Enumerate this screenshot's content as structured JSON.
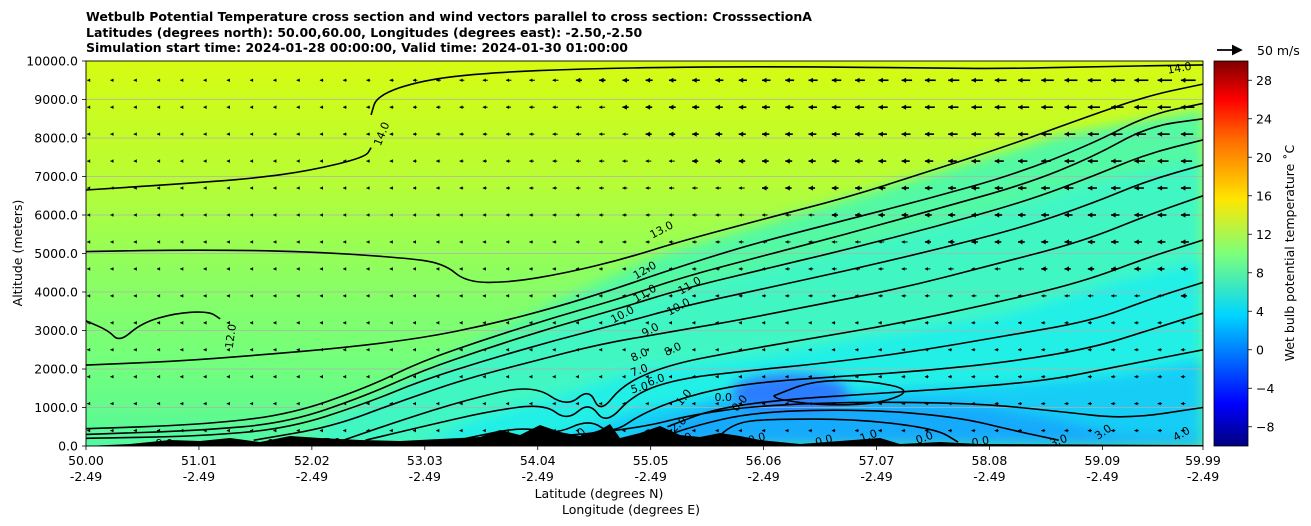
{
  "chart_data": {
    "type": "heatmap",
    "title_lines": [
      "Wetbulb Potential Temperature cross section and wind vectors parallel to cross section: CrosssectionA",
      "Latitudes (degrees north): 50.00,60.00, Longitudes (degrees east): -2.50,-2.50",
      "Simulation start time: 2024-01-28 00:00:00, Valid time: 2024-01-30 01:00:00"
    ],
    "xlabel_lat": "Latitude (degrees N)",
    "xlabel_lon": "Longitude (degrees E)",
    "ylabel": "Altitude (meters)",
    "colorbar_label": "Wet bulb potential temperature ˚C",
    "quiver_key_label": "50 m/s",
    "x_range": [
      50.0,
      59.99
    ],
    "y_range": [
      0,
      10000
    ],
    "grid": "horizontal",
    "x_ticks": [
      {
        "value": 50.0,
        "lat": "50.00",
        "lon": "-2.49"
      },
      {
        "value": 51.01,
        "lat": "51.01",
        "lon": "-2.49"
      },
      {
        "value": 52.02,
        "lat": "52.02",
        "lon": "-2.49"
      },
      {
        "value": 53.03,
        "lat": "53.03",
        "lon": "-2.49"
      },
      {
        "value": 54.04,
        "lat": "54.04",
        "lon": "-2.49"
      },
      {
        "value": 55.05,
        "lat": "55.05",
        "lon": "-2.49"
      },
      {
        "value": 56.06,
        "lat": "56.06",
        "lon": "-2.49"
      },
      {
        "value": 57.07,
        "lat": "57.07",
        "lon": "-2.49"
      },
      {
        "value": 58.08,
        "lat": "58.08",
        "lon": "-2.49"
      },
      {
        "value": 59.09,
        "lat": "59.09",
        "lon": "-2.49"
      },
      {
        "value": 59.99,
        "lat": "59.99",
        "lon": "-2.49"
      }
    ],
    "y_ticks": [
      {
        "value": 0,
        "label": "0.0"
      },
      {
        "value": 1000,
        "label": "1000.0"
      },
      {
        "value": 2000,
        "label": "2000.0"
      },
      {
        "value": 3000,
        "label": "3000.0"
      },
      {
        "value": 4000,
        "label": "4000.0"
      },
      {
        "value": 5000,
        "label": "5000.0"
      },
      {
        "value": 6000,
        "label": "6000.0"
      },
      {
        "value": 7000,
        "label": "7000.0"
      },
      {
        "value": 8000,
        "label": "8000.0"
      },
      {
        "value": 9000,
        "label": "9000.0"
      },
      {
        "value": 10000,
        "label": "10000.0"
      }
    ],
    "colorbar_range": [
      -10,
      30
    ],
    "colorbar_ticks": [
      {
        "value": -8,
        "label": "−8"
      },
      {
        "value": -4,
        "label": "−4"
      },
      {
        "value": 0,
        "label": "0"
      },
      {
        "value": 4,
        "label": "4"
      },
      {
        "value": 8,
        "label": "8"
      },
      {
        "value": 12,
        "label": "12"
      },
      {
        "value": 16,
        "label": "16"
      },
      {
        "value": 20,
        "label": "20"
      },
      {
        "value": 24,
        "label": "24"
      },
      {
        "value": 28,
        "label": "28"
      }
    ],
    "contour_lines": [
      {
        "level": "14.0",
        "points": [
          [
            50.0,
            6650
          ],
          [
            50.8,
            6800
          ],
          [
            51.5,
            6950
          ],
          [
            52.0,
            7150
          ],
          [
            52.5,
            7500
          ],
          [
            52.55,
            7750
          ]
        ]
      },
      {
        "level": "14.0",
        "points": [
          [
            52.55,
            8600
          ],
          [
            52.6,
            9100
          ],
          [
            53.0,
            9500
          ],
          [
            53.6,
            9700
          ],
          [
            54.5,
            9800
          ],
          [
            55.5,
            9850
          ],
          [
            56.5,
            9850
          ],
          [
            57.5,
            9820
          ],
          [
            58.2,
            9800
          ],
          [
            59.0,
            9850
          ],
          [
            59.99,
            9900
          ]
        ]
      },
      {
        "level": "13.0",
        "points": [
          [
            50.0,
            5050
          ],
          [
            51.0,
            5100
          ],
          [
            52.0,
            5050
          ],
          [
            52.8,
            4900
          ],
          [
            53.2,
            4750
          ],
          [
            53.4,
            4250
          ],
          [
            53.8,
            4250
          ],
          [
            54.3,
            4500
          ],
          [
            54.8,
            4850
          ],
          [
            55.3,
            5300
          ],
          [
            56.0,
            5850
          ],
          [
            56.8,
            6450
          ],
          [
            57.5,
            7100
          ],
          [
            58.2,
            7750
          ],
          [
            58.9,
            8500
          ],
          [
            59.5,
            9100
          ],
          [
            59.99,
            9400
          ]
        ]
      },
      {
        "level": "12.0",
        "points": [
          [
            50.0,
            2100
          ],
          [
            50.8,
            2200
          ],
          [
            51.5,
            2350
          ],
          [
            52.3,
            2550
          ],
          [
            53.0,
            2800
          ],
          [
            53.6,
            3150
          ],
          [
            54.2,
            3600
          ],
          [
            54.7,
            4050
          ],
          [
            55.2,
            4550
          ],
          [
            55.9,
            5200
          ],
          [
            56.7,
            5800
          ],
          [
            57.5,
            6400
          ],
          [
            58.3,
            7050
          ],
          [
            59.0,
            7850
          ],
          [
            59.5,
            8600
          ],
          [
            59.99,
            8900
          ]
        ]
      },
      {
        "level": "12.0",
        "points": [
          [
            50.0,
            3250
          ],
          [
            50.2,
            3000
          ],
          [
            50.3,
            2700
          ],
          [
            50.5,
            3200
          ],
          [
            50.8,
            3450
          ],
          [
            51.1,
            3500
          ],
          [
            51.2,
            3300
          ]
        ]
      },
      {
        "level": "11.0",
        "points": [
          [
            50.0,
            450
          ],
          [
            51.0,
            550
          ],
          [
            51.8,
            800
          ],
          [
            52.5,
            1500
          ],
          [
            53.0,
            2200
          ],
          [
            53.6,
            2800
          ],
          [
            54.2,
            3350
          ],
          [
            54.8,
            3850
          ],
          [
            55.3,
            4350
          ],
          [
            56.0,
            4900
          ],
          [
            56.8,
            5500
          ],
          [
            57.6,
            6150
          ],
          [
            58.4,
            6800
          ],
          [
            59.0,
            7500
          ],
          [
            59.5,
            8300
          ],
          [
            59.99,
            8500
          ]
        ]
      },
      {
        "level": "10.0",
        "points": [
          [
            50.0,
            300
          ],
          [
            51.0,
            400
          ],
          [
            51.8,
            600
          ],
          [
            52.5,
            1300
          ],
          [
            53.0,
            1950
          ],
          [
            53.6,
            2550
          ],
          [
            54.2,
            3100
          ],
          [
            54.8,
            3600
          ],
          [
            55.3,
            4050
          ],
          [
            56.0,
            4550
          ],
          [
            56.8,
            5100
          ],
          [
            57.6,
            5700
          ],
          [
            58.4,
            6350
          ],
          [
            59.0,
            7000
          ],
          [
            59.5,
            7600
          ],
          [
            59.99,
            7950
          ]
        ]
      },
      {
        "level": "9.0",
        "points": [
          [
            50.0,
            200
          ],
          [
            51.0,
            250
          ],
          [
            51.8,
            450
          ],
          [
            52.5,
            1100
          ],
          [
            53.0,
            1700
          ],
          [
            53.6,
            2250
          ],
          [
            54.2,
            2750
          ],
          [
            54.8,
            3200
          ],
          [
            55.3,
            3600
          ],
          [
            56.0,
            4050
          ],
          [
            56.8,
            4550
          ],
          [
            57.6,
            5100
          ],
          [
            58.4,
            5700
          ],
          [
            59.0,
            6300
          ],
          [
            59.5,
            6900
          ],
          [
            59.99,
            7300
          ]
        ]
      },
      {
        "level": "8.0",
        "points": [
          [
            51.5,
            150
          ],
          [
            52.2,
            500
          ],
          [
            52.8,
            1150
          ],
          [
            53.4,
            1750
          ],
          [
            54.0,
            2200
          ],
          [
            54.6,
            2650
          ],
          [
            55.2,
            2950
          ],
          [
            55.8,
            3250
          ],
          [
            56.5,
            3650
          ],
          [
            57.3,
            4100
          ],
          [
            58.1,
            4700
          ],
          [
            58.9,
            5300
          ],
          [
            59.5,
            6000
          ],
          [
            59.99,
            6500
          ]
        ]
      },
      {
        "level": "7.0",
        "points": [
          [
            52.3,
            150
          ],
          [
            52.8,
            650
          ],
          [
            53.4,
            1200
          ],
          [
            54.0,
            1600
          ],
          [
            54.3,
            1000
          ],
          [
            54.5,
            1500
          ],
          [
            54.6,
            850
          ],
          [
            54.8,
            1600
          ],
          [
            55.2,
            2100
          ],
          [
            55.8,
            2450
          ],
          [
            56.5,
            2800
          ],
          [
            57.3,
            3200
          ],
          [
            58.1,
            3700
          ],
          [
            58.9,
            4250
          ],
          [
            59.5,
            4900
          ],
          [
            59.99,
            5350
          ]
        ]
      },
      {
        "level": "6.0",
        "points": [
          [
            52.5,
            150
          ],
          [
            53.0,
            500
          ],
          [
            53.6,
            900
          ],
          [
            54.1,
            1100
          ],
          [
            54.3,
            650
          ],
          [
            54.5,
            1150
          ],
          [
            54.65,
            550
          ],
          [
            54.9,
            1350
          ],
          [
            55.3,
            1750
          ],
          [
            55.9,
            1950
          ],
          [
            56.6,
            2150
          ],
          [
            57.4,
            2450
          ],
          [
            58.2,
            2850
          ],
          [
            59.0,
            3250
          ],
          [
            59.5,
            3800
          ],
          [
            59.99,
            4250
          ]
        ]
      },
      {
        "level": "5.0",
        "points": [
          [
            53.4,
            200
          ],
          [
            53.9,
            500
          ],
          [
            54.2,
            300
          ],
          [
            54.5,
            700
          ],
          [
            54.7,
            300
          ],
          [
            55.0,
            900
          ],
          [
            55.5,
            1400
          ],
          [
            56.0,
            1650
          ],
          [
            56.7,
            1800
          ],
          [
            57.5,
            1950
          ],
          [
            58.3,
            2200
          ],
          [
            59.0,
            2550
          ],
          [
            59.5,
            3000
          ],
          [
            59.99,
            3450
          ]
        ]
      },
      {
        "level": "4.0",
        "points": [
          [
            55.2,
            500
          ],
          [
            55.6,
            950
          ],
          [
            56.2,
            1200
          ],
          [
            57.0,
            1350
          ],
          [
            57.8,
            1500
          ],
          [
            58.6,
            1700
          ],
          [
            59.2,
            2050
          ],
          [
            59.99,
            2500
          ]
        ]
      },
      {
        "level": "3.0",
        "points": [
          [
            53.5,
            200
          ],
          [
            54.3,
            250
          ],
          [
            55.0,
            500
          ],
          [
            55.4,
            800
          ],
          [
            56.0,
            1050
          ],
          [
            57.0,
            1150
          ],
          [
            58.0,
            1100
          ],
          [
            58.7,
            900
          ],
          [
            59.3,
            700
          ],
          [
            59.99,
            1000
          ]
        ]
      },
      {
        "level": "2.0",
        "points": [
          [
            55.05,
            100
          ],
          [
            55.4,
            500
          ],
          [
            56.0,
            900
          ],
          [
            57.0,
            950
          ],
          [
            57.8,
            750
          ],
          [
            58.3,
            400
          ],
          [
            58.7,
            150
          ]
        ]
      },
      {
        "level": "1.0",
        "points": [
          [
            55.6,
            100
          ],
          [
            55.8,
            600
          ],
          [
            56.1,
            700
          ],
          [
            56.9,
            700
          ],
          [
            57.6,
            450
          ],
          [
            57.8,
            100
          ]
        ]
      },
      {
        "level": "0.0",
        "points": [
          [
            56.15,
            1300
          ],
          [
            56.5,
            1700
          ],
          [
            57.0,
            1700
          ],
          [
            57.4,
            1450
          ],
          [
            57.1,
            1100
          ],
          [
            56.6,
            1050
          ],
          [
            56.2,
            1200
          ],
          [
            56.15,
            1300
          ]
        ]
      }
    ],
    "contour_labels": [
      {
        "text": "14.0",
        "x": 52.65,
        "y": 8100,
        "angle": -68
      },
      {
        "text": "14.0",
        "x": 59.78,
        "y": 9800,
        "angle": -10
      },
      {
        "text": "13.0",
        "x": 55.15,
        "y": 5600,
        "angle": -28
      },
      {
        "text": "12.0",
        "x": 55.0,
        "y": 4550,
        "angle": -30
      },
      {
        "text": "12.0",
        "x": 51.3,
        "y": 2850,
        "angle": -82
      },
      {
        "text": "11.0",
        "x": 55.0,
        "y": 3950,
        "angle": -30
      },
      {
        "text": "11.0",
        "x": 55.4,
        "y": 4150,
        "angle": -30
      },
      {
        "text": "10.0",
        "x": 54.8,
        "y": 3400,
        "angle": -28
      },
      {
        "text": "10.0",
        "x": 55.3,
        "y": 3600,
        "angle": -28
      },
      {
        "text": "9.0",
        "x": 55.05,
        "y": 3000,
        "angle": -28
      },
      {
        "text": "8.0",
        "x": 54.95,
        "y": 2350,
        "angle": -25
      },
      {
        "text": "8.0",
        "x": 55.25,
        "y": 2500,
        "angle": -25
      },
      {
        "text": "7.0",
        "x": 54.95,
        "y": 1950,
        "angle": -20
      },
      {
        "text": "6.0",
        "x": 55.1,
        "y": 1700,
        "angle": -20
      },
      {
        "text": "5.0",
        "x": 54.95,
        "y": 1500,
        "angle": -15
      },
      {
        "text": "2.0",
        "x": 55.3,
        "y": 550,
        "angle": -40
      },
      {
        "text": "1.0",
        "x": 55.35,
        "y": 1250,
        "angle": -50
      },
      {
        "text": "0.0",
        "x": 55.7,
        "y": 1250,
        "angle": 0
      },
      {
        "text": "0.0",
        "x": 55.85,
        "y": 1100,
        "angle": -50
      },
      {
        "text": "0.0",
        "x": 56.0,
        "y": 180,
        "angle": -15
      },
      {
        "text": "0.0",
        "x": 56.6,
        "y": 130,
        "angle": -15
      },
      {
        "text": "1.0",
        "x": 57.0,
        "y": 250,
        "angle": -20
      },
      {
        "text": "0.0",
        "x": 57.5,
        "y": 200,
        "angle": -20
      },
      {
        "text": "0.0",
        "x": 58.0,
        "y": 100,
        "angle": -10
      },
      {
        "text": "3.0",
        "x": 58.7,
        "y": 120,
        "angle": -20
      },
      {
        "text": "3.0",
        "x": 59.1,
        "y": 350,
        "angle": -35
      },
      {
        "text": "4.0",
        "x": 59.8,
        "y": 300,
        "angle": -30
      },
      {
        "text": "9.0",
        "x": 50.7,
        "y": 50,
        "angle": 0
      },
      {
        "text": "9.0",
        "x": 51.7,
        "y": 50,
        "angle": 0
      },
      {
        "text": "7.0",
        "x": 52.2,
        "y": 80,
        "angle": 0
      },
      {
        "text": "7.0",
        "x": 54.0,
        "y": 220,
        "angle": -45
      },
      {
        "text": "6.0",
        "x": 54.4,
        "y": 250,
        "angle": -45
      },
      {
        "text": "6.0",
        "x": 55.35,
        "y": 150,
        "angle": -30
      }
    ]
  }
}
